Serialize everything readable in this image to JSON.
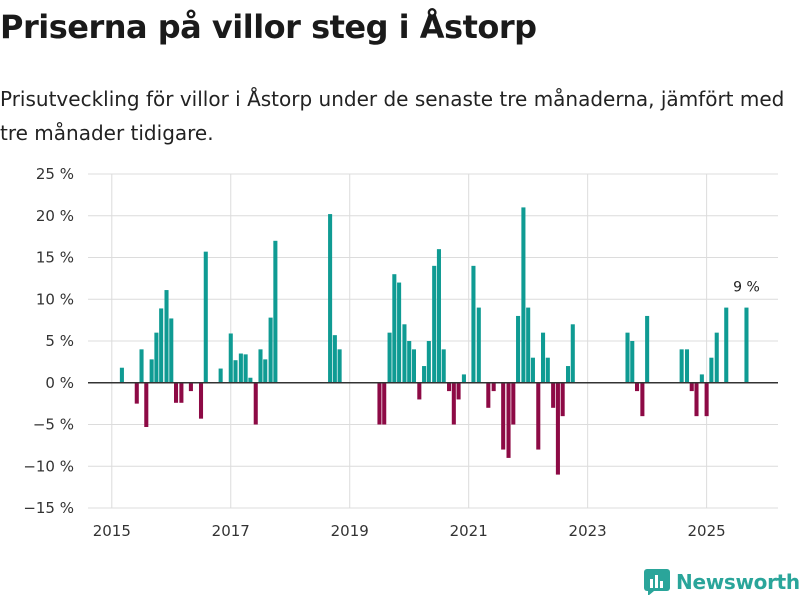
{
  "header": {
    "title": "Priserna på villor steg i Åstorp",
    "subtitle": "Prisutveckling för villor i Åstorp under de senaste tre månaderna, jämfört med tre månader tidigare."
  },
  "brand": {
    "name": "Newsworthy"
  },
  "colors": {
    "positive": "#0f9b93",
    "negative": "#8d0a45",
    "grid": "#dcdcdc",
    "zero": "#333333",
    "brand": "#2aa59a"
  },
  "chart_data": {
    "type": "bar",
    "title": "Priserna på villor steg i Åstorp",
    "xlabel": "",
    "ylabel": "",
    "ylim": [
      -15,
      25
    ],
    "yticks": [
      -15,
      -10,
      -5,
      0,
      5,
      10,
      15,
      20,
      25
    ],
    "ytick_labels": [
      "−15 %",
      "−10 %",
      "−5 %",
      "0 %",
      "5 %",
      "10 %",
      "15 %",
      "20 %",
      "25 %"
    ],
    "xlim": [
      2014.6,
      2026.2
    ],
    "xticks": [
      2015,
      2017,
      2019,
      2021,
      2023,
      2025
    ],
    "xtick_labels": [
      "2015",
      "2017",
      "2019",
      "2021",
      "2023",
      "2025"
    ],
    "last_label": "9 %",
    "x": [
      2015.17,
      2015.42,
      2015.5,
      2015.58,
      2015.67,
      2015.75,
      2015.83,
      2015.92,
      2016.0,
      2016.08,
      2016.17,
      2016.33,
      2016.5,
      2016.58,
      2016.83,
      2017.0,
      2017.08,
      2017.17,
      2017.25,
      2017.33,
      2017.42,
      2017.5,
      2017.58,
      2017.67,
      2017.75,
      2018.67,
      2018.75,
      2018.83,
      2019.5,
      2019.58,
      2019.67,
      2019.75,
      2019.83,
      2019.92,
      2020.0,
      2020.08,
      2020.17,
      2020.25,
      2020.33,
      2020.42,
      2020.5,
      2020.58,
      2020.67,
      2020.75,
      2020.83,
      2020.92,
      2021.08,
      2021.17,
      2021.33,
      2021.42,
      2021.58,
      2021.67,
      2021.75,
      2021.83,
      2021.92,
      2022.0,
      2022.08,
      2022.17,
      2022.25,
      2022.33,
      2022.42,
      2022.5,
      2022.58,
      2022.67,
      2022.75,
      2023.67,
      2023.75,
      2023.83,
      2023.92,
      2024.0,
      2024.58,
      2024.67,
      2024.75,
      2024.83,
      2024.92,
      2025.0,
      2025.08,
      2025.17,
      2025.33,
      2025.67
    ],
    "values": [
      1.8,
      -2.5,
      4,
      -5.3,
      2.8,
      6,
      8.9,
      11.1,
      7.7,
      -2.4,
      -2.4,
      -1,
      -4.3,
      15.7,
      1.7,
      5.9,
      2.7,
      3.5,
      3.4,
      0.6,
      -5,
      4,
      2.8,
      7.8,
      17,
      20.2,
      5.7,
      4,
      -5,
      -5,
      6,
      13,
      12,
      7,
      5,
      4,
      -2,
      2,
      5,
      14,
      16,
      4,
      -1,
      -5,
      -2,
      1,
      14,
      9,
      -3,
      -1,
      -8,
      -9,
      -5,
      8,
      21,
      9,
      3,
      -8,
      6,
      3,
      -3,
      -11,
      -4,
      2,
      7,
      6,
      5,
      -1,
      -4,
      8,
      4,
      4,
      -1,
      -4,
      1,
      -4,
      3,
      6,
      9,
      9
    ]
  }
}
